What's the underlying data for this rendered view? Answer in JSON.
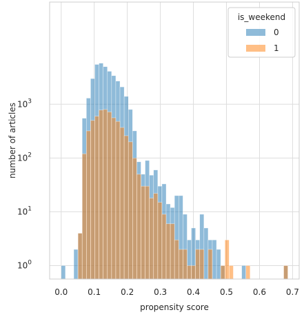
{
  "chart_data": {
    "type": "histogram",
    "xlabel": "propensity score",
    "ylabel": "number of articles",
    "xlim": [
      -0.035,
      0.72
    ],
    "ylim_log10": [
      -0.25,
      4.9
    ],
    "y_scale": "log",
    "x_ticks": [
      "0.0",
      "0.1",
      "0.2",
      "0.3",
      "0.4",
      "0.5",
      "0.6",
      "0.7"
    ],
    "x_tick_values": [
      0.0,
      0.1,
      0.2,
      0.3,
      0.4,
      0.5,
      0.6,
      0.7
    ],
    "y_tick_exponents": [
      0,
      1,
      2,
      3
    ],
    "grid": true,
    "legend": {
      "title": "is_weekend",
      "placement": "top-right",
      "entries": [
        {
          "label": "0",
          "color": "#1f77b4"
        },
        {
          "label": "1",
          "color": "#ff7f0e"
        }
      ]
    },
    "bin_width": 0.0127,
    "series": [
      {
        "name": "0",
        "color": "#1f77b4",
        "bins": [
          [
            0.0,
            1
          ],
          [
            0.0381,
            2
          ],
          [
            0.0508,
            4
          ],
          [
            0.0635,
            550
          ],
          [
            0.0762,
            1300
          ],
          [
            0.0889,
            3000
          ],
          [
            0.1016,
            5500
          ],
          [
            0.1143,
            5800
          ],
          [
            0.127,
            5000
          ],
          [
            0.1397,
            4100
          ],
          [
            0.1524,
            3400
          ],
          [
            0.1651,
            2700
          ],
          [
            0.1778,
            2100
          ],
          [
            0.1905,
            1400
          ],
          [
            0.2032,
            800
          ],
          [
            0.2159,
            320
          ],
          [
            0.2286,
            85
          ],
          [
            0.2413,
            50
          ],
          [
            0.254,
            90
          ],
          [
            0.2667,
            48
          ],
          [
            0.2794,
            60
          ],
          [
            0.2921,
            30
          ],
          [
            0.3048,
            33
          ],
          [
            0.3175,
            14
          ],
          [
            0.3302,
            12
          ],
          [
            0.3429,
            20
          ],
          [
            0.3556,
            20
          ],
          [
            0.3683,
            9
          ],
          [
            0.381,
            3
          ],
          [
            0.3937,
            5
          ],
          [
            0.4064,
            3
          ],
          [
            0.4191,
            9
          ],
          [
            0.4318,
            5
          ],
          [
            0.4445,
            3
          ],
          [
            0.4572,
            3
          ],
          [
            0.4699,
            2
          ],
          [
            0.4826,
            1
          ],
          [
            0.5461,
            1
          ],
          [
            0.6731,
            1
          ]
        ]
      },
      {
        "name": "1",
        "color": "#ff7f0e",
        "bins": [
          [
            0.0508,
            4
          ],
          [
            0.0635,
            120
          ],
          [
            0.0762,
            320
          ],
          [
            0.0889,
            500
          ],
          [
            0.1016,
            600
          ],
          [
            0.1143,
            780
          ],
          [
            0.127,
            800
          ],
          [
            0.1397,
            720
          ],
          [
            0.1524,
            560
          ],
          [
            0.1651,
            480
          ],
          [
            0.1778,
            370
          ],
          [
            0.1905,
            260
          ],
          [
            0.2032,
            200
          ],
          [
            0.2159,
            100
          ],
          [
            0.2286,
            50
          ],
          [
            0.2413,
            30
          ],
          [
            0.254,
            30
          ],
          [
            0.2667,
            18
          ],
          [
            0.2794,
            22
          ],
          [
            0.2921,
            15
          ],
          [
            0.3048,
            9
          ],
          [
            0.3175,
            6
          ],
          [
            0.3302,
            6
          ],
          [
            0.3429,
            3
          ],
          [
            0.3556,
            2
          ],
          [
            0.3683,
            2
          ],
          [
            0.381,
            1
          ],
          [
            0.3937,
            1
          ],
          [
            0.4064,
            2
          ],
          [
            0.4191,
            2
          ],
          [
            0.4445,
            2
          ],
          [
            0.4826,
            1
          ],
          [
            0.4953,
            3
          ],
          [
            0.508,
            1
          ],
          [
            0.5588,
            1
          ],
          [
            0.6731,
            1
          ]
        ]
      }
    ]
  }
}
